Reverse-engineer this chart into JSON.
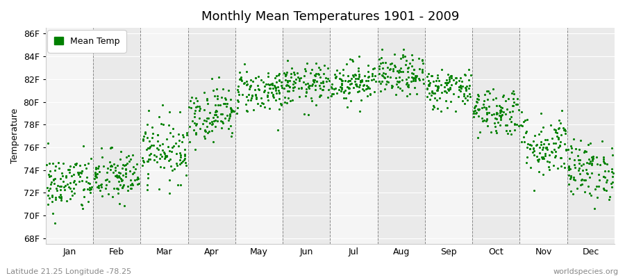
{
  "title": "Monthly Mean Temperatures 1901 - 2009",
  "ylabel": "Temperature",
  "y_ticks": [
    68,
    70,
    72,
    74,
    76,
    78,
    80,
    82,
    84,
    86
  ],
  "y_tick_labels": [
    "68F",
    "70F",
    "72F",
    "74F",
    "76F",
    "78F",
    "80F",
    "82F",
    "84F",
    "86F"
  ],
  "ylim": [
    67.5,
    86.5
  ],
  "month_labels": [
    "Jan",
    "Feb",
    "Mar",
    "Apr",
    "May",
    "Jun",
    "Jul",
    "Aug",
    "Sep",
    "Oct",
    "Nov",
    "Dec"
  ],
  "legend_label": "Mean Temp",
  "dot_color": "#008000",
  "background_color": "#ffffff",
  "band_color_odd": "#f5f5f5",
  "band_color_even": "#eaeaea",
  "subtitle_left": "Latitude 21.25 Longitude -78.25",
  "subtitle_right": "worldspecies.org",
  "mean_temps": [
    72.8,
    73.4,
    75.8,
    79.0,
    81.0,
    81.5,
    81.8,
    82.3,
    81.2,
    79.2,
    76.2,
    74.0
  ],
  "std_temps": [
    1.3,
    1.2,
    1.4,
    1.2,
    1.0,
    0.9,
    0.9,
    0.9,
    0.9,
    1.1,
    1.4,
    1.3
  ],
  "n_years": 109,
  "seed": 42
}
